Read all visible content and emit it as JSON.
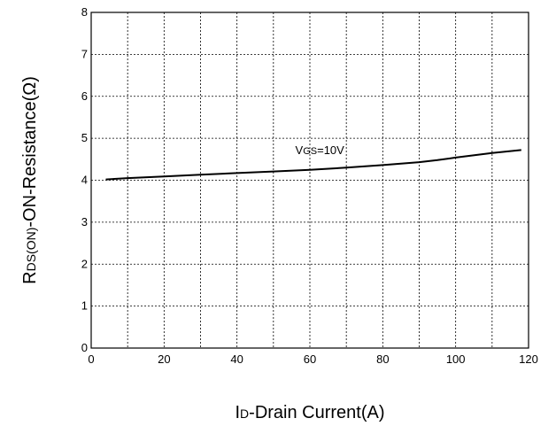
{
  "chart_data": {
    "type": "line",
    "title": "",
    "xlabel": {
      "main": "I",
      "sub": "D",
      "rest": "-Drain Current(A)"
    },
    "ylabel": {
      "main": "R",
      "sub": "DS(ON)",
      "rest": "-ON-Resistance(Ω)"
    },
    "xlim": [
      0,
      120
    ],
    "ylim": [
      0,
      8
    ],
    "xticks": [
      0,
      20,
      40,
      60,
      80,
      100,
      120
    ],
    "yticks": [
      0,
      1,
      2,
      3,
      4,
      5,
      6,
      7,
      8
    ],
    "xticklabels": [
      "0",
      "20",
      "40",
      "60",
      "80",
      "100",
      "120"
    ],
    "yticklabels": [
      "0",
      "1",
      "2",
      "3",
      "4",
      "5",
      "6",
      "7",
      "8"
    ],
    "grid": true,
    "grid_step_x": 10,
    "grid_step_y": 1,
    "annotation": {
      "main": "V",
      "sub": "GS",
      "rest": "=10V",
      "x": 56,
      "y": 4.62
    },
    "series": [
      {
        "x": [
          4,
          10,
          20,
          30,
          40,
          50,
          60,
          70,
          80,
          90,
          95,
          100,
          110,
          118
        ],
        "y": [
          4.02,
          4.05,
          4.09,
          4.13,
          4.17,
          4.21,
          4.25,
          4.3,
          4.36,
          4.43,
          4.48,
          4.54,
          4.65,
          4.72
        ]
      }
    ]
  }
}
